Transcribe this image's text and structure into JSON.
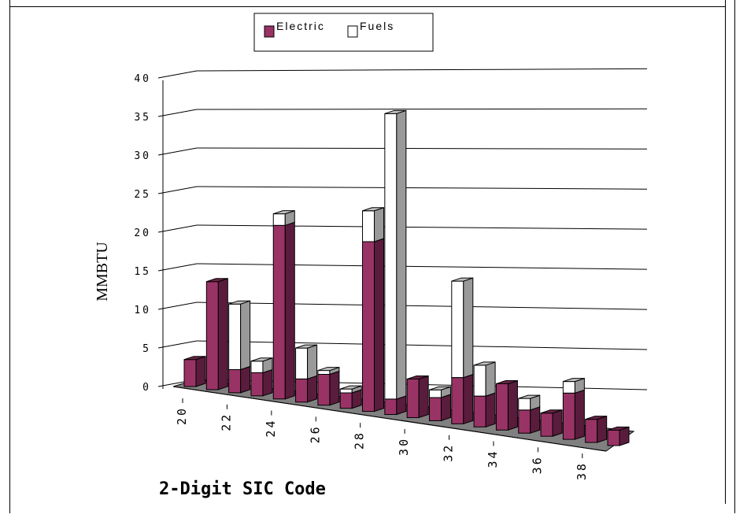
{
  "chart_data": {
    "type": "bar",
    "title": "",
    "xlabel": "2-Digit SIC Code",
    "ylabel": "MMBTU",
    "ylim": [
      0,
      40
    ],
    "yticks": [
      "0",
      "5",
      "10",
      "15",
      "20",
      "25",
      "30",
      "35",
      "40"
    ],
    "xticks": [
      "20",
      "22",
      "24",
      "26",
      "28",
      "30",
      "32",
      "34",
      "36",
      "38"
    ],
    "categories": [
      "20",
      "21",
      "22",
      "23",
      "24",
      "25",
      "26",
      "27",
      "28",
      "29",
      "30",
      "31",
      "32",
      "33",
      "34",
      "35",
      "36",
      "37",
      "38",
      "39"
    ],
    "stacked": true,
    "series": [
      {
        "name": "Electric",
        "color": "#993366",
        "values": [
          3.5,
          14,
          3,
          3,
          22.5,
          3,
          4,
          2,
          22,
          2,
          5,
          3,
          6,
          4,
          6,
          3,
          3,
          6,
          3,
          2
        ]
      },
      {
        "name": "Fuels",
        "color": "#ffffff",
        "values": [
          0,
          0,
          8.5,
          1.5,
          1.5,
          4,
          0.5,
          0.5,
          4,
          37,
          0,
          1,
          12.5,
          4,
          0,
          1.5,
          0,
          1.5,
          0,
          0
        ]
      }
    ],
    "legend": {
      "position": "top-center",
      "entries": [
        "Electric",
        "Fuels"
      ]
    },
    "grid": true,
    "view": "3d"
  }
}
